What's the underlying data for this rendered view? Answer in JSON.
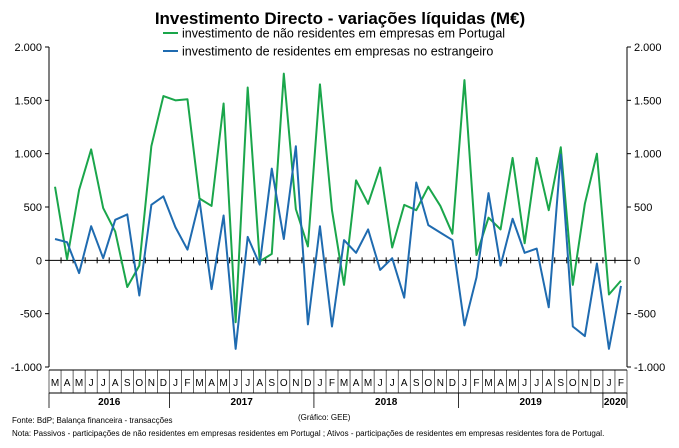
{
  "chart_data": {
    "type": "line",
    "title": "Investimento Directo - variações líquidas (M€)",
    "xlabel": "",
    "ylabel": "",
    "ylim": [
      -1000,
      2000
    ],
    "yticks": [
      2000,
      1500,
      1000,
      500,
      0,
      -500,
      -1000
    ],
    "ytick_labels": [
      "2.000",
      "1.500",
      "1.000",
      "500",
      "0",
      "-500",
      "-1.000"
    ],
    "legend_position": "top",
    "grid": false,
    "colors": {
      "green": "#1aa64b",
      "blue": "#1f6bb0",
      "axis": "#000000"
    },
    "month_labels": [
      "M",
      "A",
      "M",
      "J",
      "J",
      "A",
      "S",
      "O",
      "N",
      "D",
      "J",
      "F",
      "M",
      "A",
      "M",
      "J",
      "J",
      "A",
      "S",
      "O",
      "N",
      "D",
      "J",
      "F",
      "M",
      "A",
      "M",
      "J",
      "J",
      "A",
      "S",
      "O",
      "N",
      "D",
      "J",
      "F",
      "M",
      "A",
      "M",
      "J",
      "J",
      "A",
      "S",
      "O",
      "N",
      "D",
      "J",
      "F"
    ],
    "year_labels": [
      "2016",
      "2017",
      "2018",
      "2019",
      "2020"
    ],
    "series": [
      {
        "name": "investimento de não residentes em empresas em Portugal",
        "color": "#1aa64b",
        "values": [
          690,
          10,
          660,
          1040,
          490,
          270,
          -250,
          -50,
          1070,
          1540,
          1500,
          1510,
          580,
          510,
          1470,
          -580,
          1620,
          -10,
          60,
          1750,
          480,
          130,
          1650,
          470,
          -230,
          750,
          530,
          870,
          120,
          520,
          470,
          690,
          510,
          250,
          1690,
          50,
          400,
          290,
          960,
          160,
          960,
          470,
          1060,
          -230,
          530,
          1000,
          -320,
          -190
        ]
      },
      {
        "name": "investimento de residentes em empresas no estrangeiro",
        "color": "#1f6bb0",
        "values": [
          200,
          170,
          -120,
          320,
          20,
          380,
          430,
          -330,
          520,
          600,
          310,
          100,
          560,
          -270,
          420,
          -830,
          220,
          -40,
          860,
          200,
          1070,
          -600,
          320,
          -620,
          190,
          70,
          290,
          -90,
          20,
          -350,
          730,
          330,
          260,
          190,
          -610,
          -160,
          630,
          -50,
          390,
          70,
          110,
          -440,
          990,
          -620,
          -710,
          -30,
          -830,
          -240
        ]
      }
    ]
  },
  "footnotes": {
    "source": "Fonte: BdP; Balança financeira - transacções",
    "credit": "(Gráfico: GEE)",
    "note": "Nota: Passivos - participações de não residentes em empresas residentes em Portugal ; Ativos - participações de residentes em empresas residentes fora de Portugal."
  }
}
